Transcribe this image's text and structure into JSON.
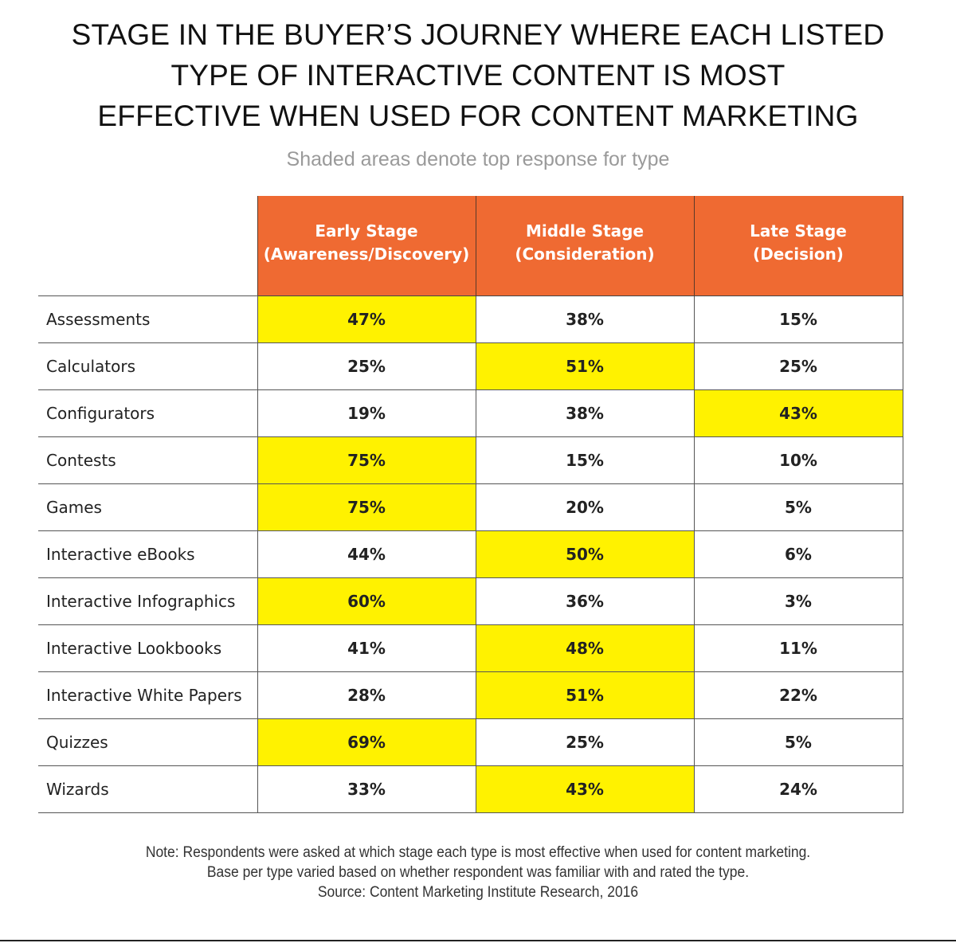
{
  "title_lines": [
    "STAGE IN THE BUYER’S JOURNEY WHERE EACH LISTED",
    "TYPE OF INTERACTIVE CONTENT IS MOST",
    "EFFECTIVE WHEN USED FOR CONTENT MARKETING"
  ],
  "subtitle": "Shaded areas denote top response for type",
  "chart_data": {
    "type": "table",
    "title": "STAGE IN THE BUYER’S JOURNEY WHERE EACH LISTED TYPE OF INTERACTIVE CONTENT IS MOST EFFECTIVE WHEN USED FOR CONTENT MARKETING",
    "subtitle": "Shaded areas denote top response for type",
    "columns": [
      {
        "line1": "Early Stage",
        "line2": "(Awareness/Discovery)"
      },
      {
        "line1": "Middle Stage",
        "line2": "(Consideration)"
      },
      {
        "line1": "Late Stage",
        "line2": "(Decision)"
      }
    ],
    "rows": [
      {
        "label": "Assessments",
        "values": [
          "47%",
          "38%",
          "15%"
        ],
        "top_index": 0
      },
      {
        "label": "Calculators",
        "values": [
          "25%",
          "51%",
          "25%"
        ],
        "top_index": 1
      },
      {
        "label": "Configurators",
        "values": [
          "19%",
          "38%",
          "43%"
        ],
        "top_index": 2
      },
      {
        "label": "Contests",
        "values": [
          "75%",
          "15%",
          "10%"
        ],
        "top_index": 0
      },
      {
        "label": "Games",
        "values": [
          "75%",
          "20%",
          "5%"
        ],
        "top_index": 0
      },
      {
        "label": "Interactive eBooks",
        "values": [
          "44%",
          "50%",
          "6%"
        ],
        "top_index": 1
      },
      {
        "label": "Interactive Infographics",
        "values": [
          "60%",
          "36%",
          "3%"
        ],
        "top_index": 0
      },
      {
        "label": "Interactive Lookbooks",
        "values": [
          "41%",
          "48%",
          "11%"
        ],
        "top_index": 1
      },
      {
        "label": "Interactive White Papers",
        "values": [
          "28%",
          "51%",
          "22%"
        ],
        "top_index": 1
      },
      {
        "label": "Quizzes",
        "values": [
          "69%",
          "25%",
          "5%"
        ],
        "top_index": 0
      },
      {
        "label": "Wizards",
        "values": [
          "33%",
          "43%",
          "24%"
        ],
        "top_index": 1
      }
    ],
    "header_color": "#ef6a32",
    "highlight_color": "#fff200"
  },
  "note_lines": [
    "Note: Respondents were asked at which stage each type is most effective when used for content marketing.",
    "Base per type varied based on whether respondent was familiar with and rated the type.",
    "Source: Content Marketing Institute Research, 2016"
  ]
}
